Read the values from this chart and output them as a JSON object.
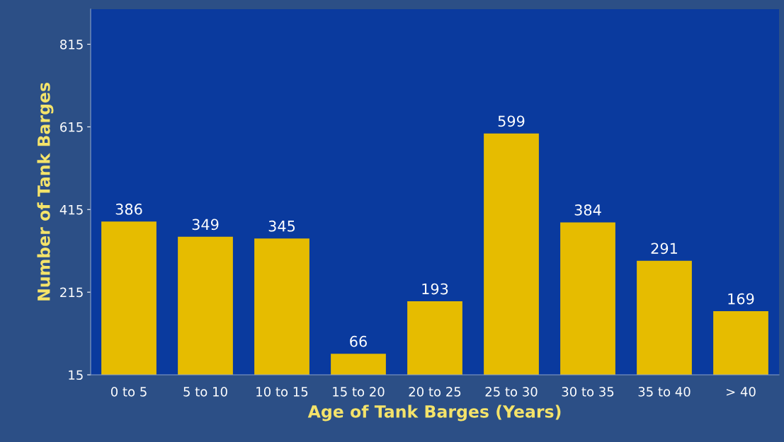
{
  "chart_data": {
    "type": "bar",
    "xlabel": "Age of Tank Barges (Years)",
    "ylabel": "Number of Tank Barges",
    "categories": [
      "0 to 5",
      "5 to 10",
      "10 to 15",
      "15 to 20",
      "20 to 25",
      "25 to 30",
      "30 to 35",
      "35 to 40",
      "> 40"
    ],
    "values": [
      386,
      349,
      345,
      66,
      193,
      599,
      384,
      291,
      169
    ],
    "color": "#e6bc00",
    "ylim": [
      15,
      900
    ],
    "yticks": [
      15,
      215,
      415,
      615,
      815
    ],
    "data_labels": true,
    "grid": false,
    "legend": false
  }
}
